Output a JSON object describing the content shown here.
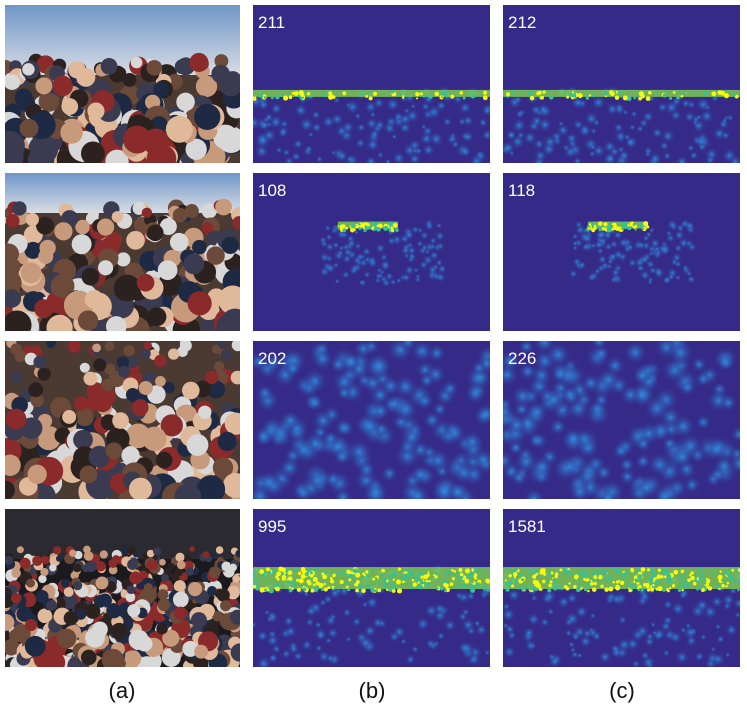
{
  "rows": [
    {
      "b": 211,
      "c": 212
    },
    {
      "b": 108,
      "c": 118
    },
    {
      "b": 202,
      "c": 226
    },
    {
      "b": 995,
      "c": 1581
    }
  ],
  "columns": [
    "(a)",
    "(b)",
    "(c)"
  ]
}
